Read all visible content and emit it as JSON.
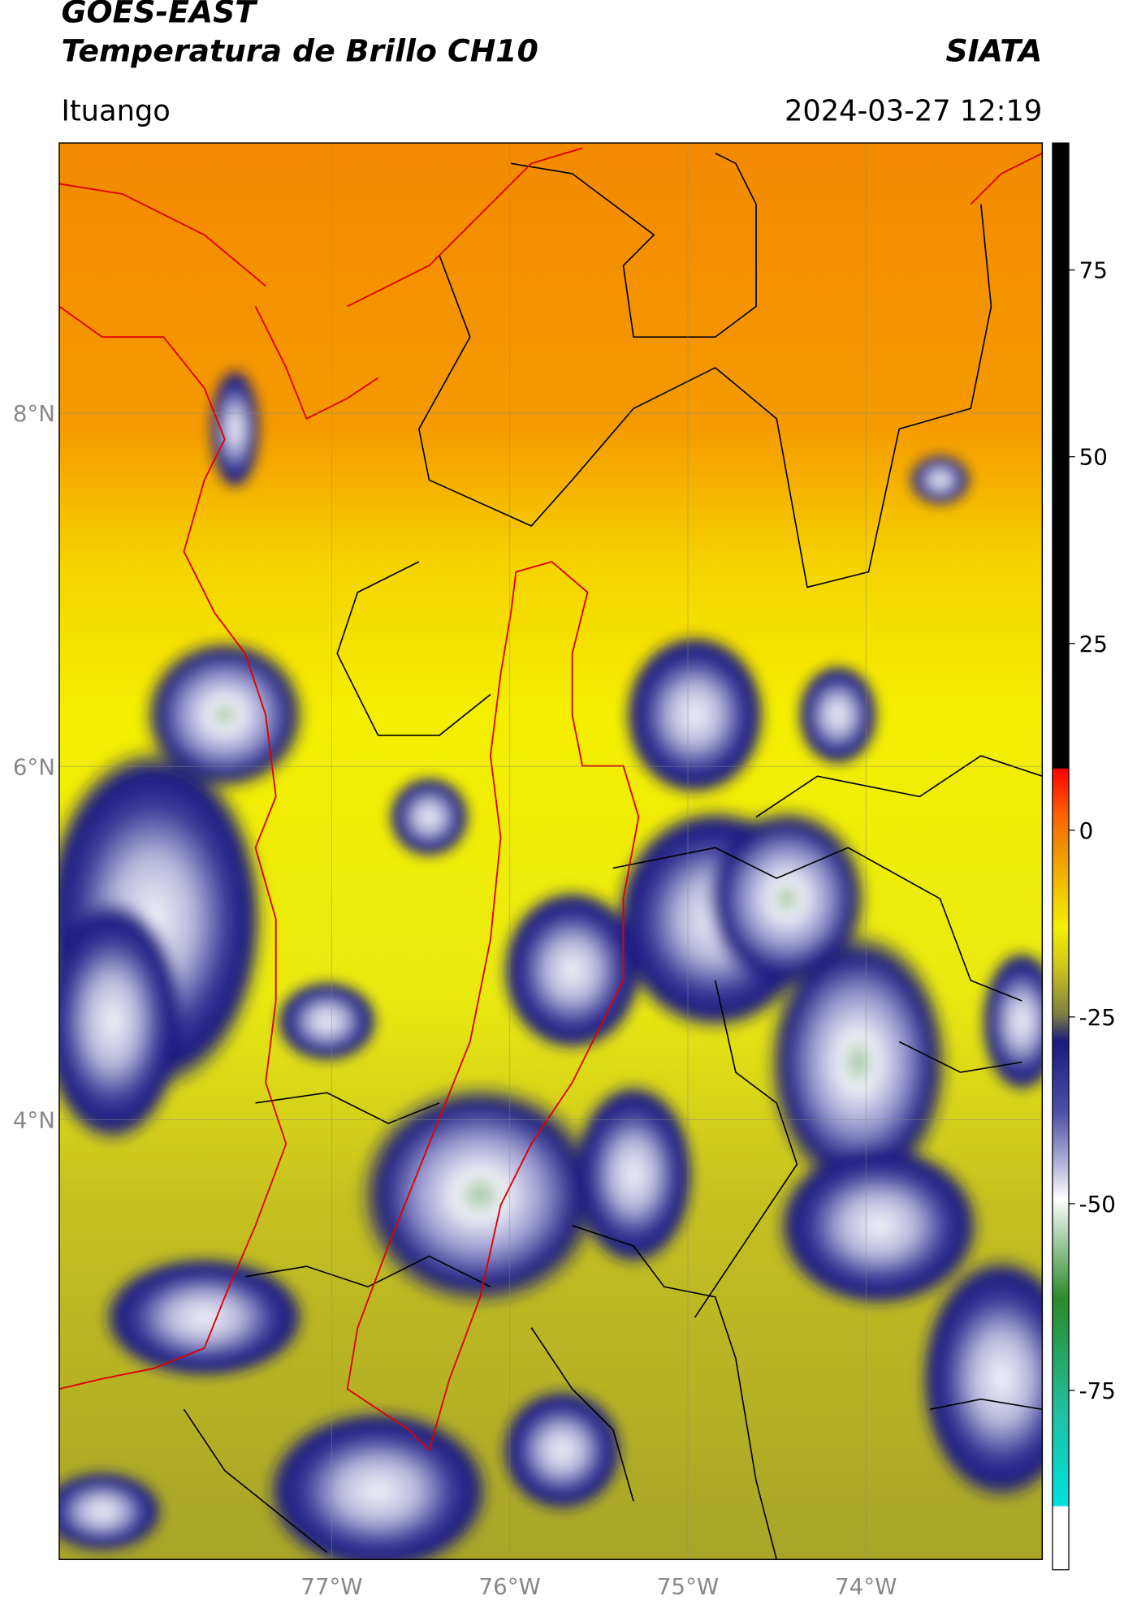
{
  "header": {
    "title": "GOES-EAST",
    "subtitle": "Temperatura de Brillo CH10",
    "brand": "SIATA",
    "region": "Ituango",
    "timestamp": "2024-03-27 12:19"
  },
  "map": {
    "lon_lim": [
      -78.53,
      -73.01
    ],
    "lat_lim": [
      1.51,
      9.53
    ],
    "grid": true,
    "lon_ticks": [
      {
        "value": -77,
        "label": "77°W"
      },
      {
        "value": -76,
        "label": "76°W"
      },
      {
        "value": -75,
        "label": "75°W"
      },
      {
        "value": -74,
        "label": "74°W"
      }
    ],
    "lat_ticks": [
      {
        "value": 8,
        "label": "8°N"
      },
      {
        "value": 6,
        "label": "6°N"
      },
      {
        "value": 4,
        "label": "4°N"
      }
    ]
  },
  "colorbar": {
    "lim": [
      -99,
      92
    ],
    "ticks": [
      75,
      50,
      25,
      0,
      -25,
      -50,
      -75
    ]
  }
}
